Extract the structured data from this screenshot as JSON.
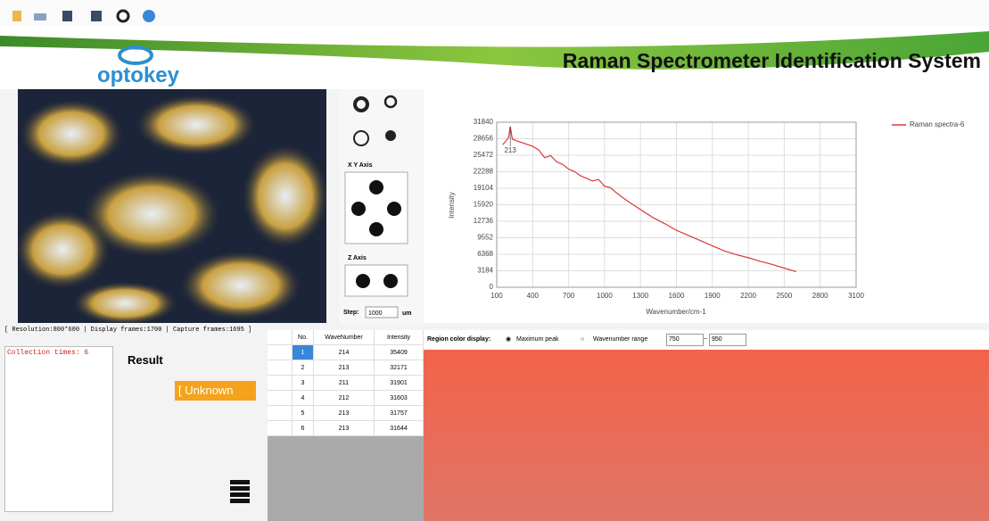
{
  "header": {
    "logo": "optokey",
    "title": "Raman Spectrometer Identification System"
  },
  "controls": {
    "xy_axis": "X Y Axis",
    "z_axis": "Z Axis",
    "step_label": "Step:",
    "step_value": "1000",
    "step_unit": "um"
  },
  "status": "[ Resolution:800*600 | Display frames:1700 | Capture frames:1695 ]",
  "log": "Collection times: 6",
  "result": {
    "label": "Result",
    "value": "[ Unknown"
  },
  "table": {
    "columns": [
      "No.",
      "WaveNumber",
      "Intensity"
    ],
    "rows": [
      [
        "1",
        "214",
        "35409"
      ],
      [
        "2",
        "213",
        "32171"
      ],
      [
        "3",
        "211",
        "31901"
      ],
      [
        "4",
        "212",
        "31603"
      ],
      [
        "5",
        "213",
        "31757"
      ],
      [
        "6",
        "213",
        "31644"
      ]
    ]
  },
  "region": {
    "label": "Region color display:",
    "option_peak": "Maximum peak",
    "option_range": "Wavenumber range",
    "range_from": "750",
    "range_sep": "~",
    "range_to": "950"
  },
  "chart_data": {
    "type": "line",
    "xlabel": "Wavenumber/cm-1",
    "ylabel": "Intensity",
    "annotation": "213",
    "x": [
      150,
      180,
      200,
      213,
      230,
      260,
      300,
      350,
      400,
      450,
      500,
      550,
      600,
      650,
      700,
      750,
      800,
      850,
      900,
      950,
      1000,
      1050,
      1100,
      1200,
      1300,
      1400,
      1500,
      1600,
      1700,
      1800,
      1900,
      2000,
      2100,
      2200,
      2300,
      2400,
      2500,
      2600
    ],
    "series": [
      {
        "name": "Raman spectra-6",
        "color": "#d9383a",
        "values": [
          27500,
          28300,
          29000,
          31000,
          28600,
          28300,
          28000,
          27600,
          27200,
          26500,
          25000,
          25400,
          24200,
          23700,
          22800,
          22300,
          21500,
          21000,
          20500,
          20800,
          19500,
          19200,
          18200,
          16500,
          15000,
          13500,
          12300,
          11000,
          10000,
          9000,
          8000,
          7000,
          6300,
          5700,
          5000,
          4400,
          3700,
          3000
        ]
      }
    ],
    "xlim": [
      100,
      3100
    ],
    "xticks": [
      100,
      400,
      700,
      1000,
      1300,
      1600,
      1900,
      2200,
      2500,
      2800,
      3100
    ],
    "ylim": [
      0,
      31840
    ],
    "yticks": [
      0,
      3184,
      6368,
      9552,
      12736,
      15920,
      19104,
      22288,
      25472,
      28656,
      31840
    ],
    "grid": true,
    "legend": "top-right"
  }
}
